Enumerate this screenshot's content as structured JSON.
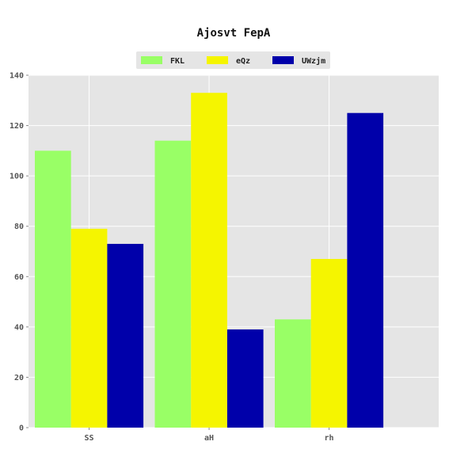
{
  "chart_data": {
    "type": "bar",
    "title": "Ajosvt FepA",
    "xlabel": "",
    "ylabel": "",
    "categories": [
      "SS",
      "aH",
      "rh"
    ],
    "series": [
      {
        "name": "FKL",
        "color": "#99ff66",
        "values": [
          110,
          114,
          43
        ]
      },
      {
        "name": "eQz",
        "color": "#f5f500",
        "values": [
          79,
          133,
          67
        ]
      },
      {
        "name": "UWzjm",
        "color": "#0000aa",
        "values": [
          73,
          39,
          125
        ]
      }
    ],
    "ylim": [
      0,
      140
    ],
    "yticks": [
      0,
      20,
      40,
      60,
      80,
      100,
      120,
      140
    ],
    "grid": true,
    "legend_position": "top-center",
    "background_color": "#e5e5e5",
    "grid_color": "#ffffff"
  }
}
